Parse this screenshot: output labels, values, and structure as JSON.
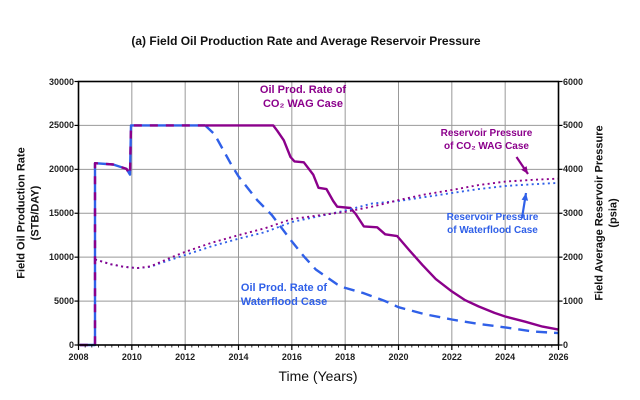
{
  "title": "(a) Field Oil Production Rate and Average Reservoir Pressure",
  "colors": {
    "wag": "#8B008B",
    "waterflood": "#3060E8",
    "grid": "#999999",
    "axis": "#000000",
    "text": "#111111"
  },
  "annotations": {
    "wag_rate": {
      "line1": "Oil Prod. Rate of",
      "line2": "CO₂ WAG Case"
    },
    "wf_rate": {
      "line1": "Oil Prod. Rate of",
      "line2": "Waterflood Case"
    },
    "wag_press": {
      "line1": "Reservoir Pressure",
      "line2": "of CO₂ WAG Case"
    },
    "wf_press": {
      "line1": "Reservoir Pressure",
      "line2": "of Waterflood Case"
    }
  },
  "chart_data": {
    "type": "line",
    "title": "(a) Field Oil Production Rate and Average Reservoir Pressure",
    "grid": true,
    "axes": {
      "x": {
        "label": "Time (Years)",
        "min": 2008,
        "max": 2026,
        "ticks": [
          2008,
          2010,
          2012,
          2014,
          2016,
          2018,
          2020,
          2022,
          2024,
          2026
        ],
        "minor_step": 0.25
      },
      "left": {
        "label_line1": "Field Oil Production Rate",
        "label_line2": "(STB/DAY)",
        "min": 0,
        "max": 30000,
        "ticks": [
          0,
          5000,
          10000,
          15000,
          20000,
          25000,
          30000
        ]
      },
      "right": {
        "label_line1": "Field Average Reservoir Pressure",
        "label_line2": "(psia)",
        "min": 0,
        "max": 6000,
        "ticks": [
          0,
          1000,
          2000,
          3000,
          4000,
          5000,
          6000
        ]
      }
    },
    "series": [
      {
        "name": "Oil Prod. Rate of Waterflood Case",
        "axis": "left",
        "color_key": "waterflood",
        "width": 2.4,
        "segments": [
          {
            "until": 2012.75,
            "style": "solid"
          },
          {
            "style": "long-dash"
          }
        ],
        "points": [
          [
            2008.05,
            0
          ],
          [
            2008.62,
            0
          ],
          [
            2008.62,
            20700
          ],
          [
            2009.3,
            20550
          ],
          [
            2009.8,
            20050
          ],
          [
            2009.93,
            19400
          ],
          [
            2009.97,
            25000
          ],
          [
            2012.75,
            25000
          ],
          [
            2013.1,
            24000
          ],
          [
            2013.7,
            20700
          ],
          [
            2014.0,
            19200
          ],
          [
            2014.7,
            16500
          ],
          [
            2015.25,
            14800
          ],
          [
            2016.0,
            11800
          ],
          [
            2016.45,
            10100
          ],
          [
            2016.9,
            8600
          ],
          [
            2017.7,
            6900
          ],
          [
            2018.0,
            6500
          ],
          [
            2018.7,
            5900
          ],
          [
            2019.5,
            5000
          ],
          [
            2020.0,
            4300
          ],
          [
            2021.0,
            3500
          ],
          [
            2022.0,
            2900
          ],
          [
            2023.0,
            2400
          ],
          [
            2024.0,
            2000
          ],
          [
            2025.0,
            1550
          ],
          [
            2026.0,
            1350
          ]
        ]
      },
      {
        "name": "Oil Prod. Rate of CO₂ WAG Case",
        "axis": "left",
        "color_key": "wag",
        "width": 2.4,
        "segments": [
          {
            "until": 2012.75,
            "style": "overlay-dash"
          },
          {
            "style": "solid"
          }
        ],
        "points": [
          [
            2008.05,
            0
          ],
          [
            2008.62,
            0
          ],
          [
            2008.62,
            20700
          ],
          [
            2009.3,
            20550
          ],
          [
            2009.8,
            20050
          ],
          [
            2009.93,
            19400
          ],
          [
            2009.97,
            25000
          ],
          [
            2012.75,
            25000
          ],
          [
            2015.3,
            25000
          ],
          [
            2015.45,
            24400
          ],
          [
            2015.7,
            23300
          ],
          [
            2015.95,
            21400
          ],
          [
            2016.1,
            20900
          ],
          [
            2016.45,
            20800
          ],
          [
            2016.8,
            19400
          ],
          [
            2017.0,
            17900
          ],
          [
            2017.3,
            17750
          ],
          [
            2017.55,
            16400
          ],
          [
            2017.7,
            15750
          ],
          [
            2018.2,
            15600
          ],
          [
            2018.4,
            14900
          ],
          [
            2018.7,
            13500
          ],
          [
            2019.2,
            13400
          ],
          [
            2019.5,
            12600
          ],
          [
            2019.95,
            12400
          ],
          [
            2020.4,
            10800
          ],
          [
            2020.9,
            9100
          ],
          [
            2021.4,
            7500
          ],
          [
            2022.0,
            6100
          ],
          [
            2022.5,
            5100
          ],
          [
            2023.0,
            4400
          ],
          [
            2023.6,
            3650
          ],
          [
            2024.0,
            3250
          ],
          [
            2024.75,
            2650
          ],
          [
            2025.4,
            2100
          ],
          [
            2026.0,
            1750
          ]
        ]
      },
      {
        "name": "Reservoir Pressure of Waterflood Case",
        "axis": "right",
        "color_key": "waterflood",
        "width": 1.9,
        "segments": [
          {
            "style": "dotted"
          }
        ],
        "points": [
          [
            2008.62,
            1950
          ],
          [
            2009.2,
            1840
          ],
          [
            2009.7,
            1780
          ],
          [
            2010.2,
            1750
          ],
          [
            2010.7,
            1780
          ],
          [
            2011.0,
            1850
          ],
          [
            2012.0,
            2050
          ],
          [
            2013.0,
            2250
          ],
          [
            2014.0,
            2420
          ],
          [
            2015.0,
            2570
          ],
          [
            2016.0,
            2800
          ],
          [
            2017.0,
            2930
          ],
          [
            2018.0,
            3060
          ],
          [
            2019.0,
            3220
          ],
          [
            2020.0,
            3280
          ],
          [
            2021.0,
            3370
          ],
          [
            2022.0,
            3460
          ],
          [
            2023.0,
            3550
          ],
          [
            2024.0,
            3620
          ],
          [
            2025.0,
            3660
          ],
          [
            2026.0,
            3690
          ]
        ]
      },
      {
        "name": "Reservoir Pressure of CO₂ WAG Case",
        "axis": "right",
        "color_key": "wag",
        "width": 1.9,
        "segments": [
          {
            "style": "dotted"
          }
        ],
        "points": [
          [
            2008.62,
            1950
          ],
          [
            2009.2,
            1840
          ],
          [
            2009.7,
            1780
          ],
          [
            2010.2,
            1750
          ],
          [
            2010.7,
            1790
          ],
          [
            2011.0,
            1870
          ],
          [
            2011.5,
            2000
          ],
          [
            2012.0,
            2120
          ],
          [
            2013.0,
            2330
          ],
          [
            2014.0,
            2500
          ],
          [
            2015.0,
            2660
          ],
          [
            2016.0,
            2870
          ],
          [
            2017.0,
            2950
          ],
          [
            2018.0,
            3030
          ],
          [
            2019.0,
            3150
          ],
          [
            2020.0,
            3300
          ],
          [
            2021.0,
            3430
          ],
          [
            2022.0,
            3530
          ],
          [
            2023.0,
            3640
          ],
          [
            2024.0,
            3720
          ],
          [
            2025.0,
            3760
          ],
          [
            2026.0,
            3790
          ]
        ]
      }
    ]
  }
}
